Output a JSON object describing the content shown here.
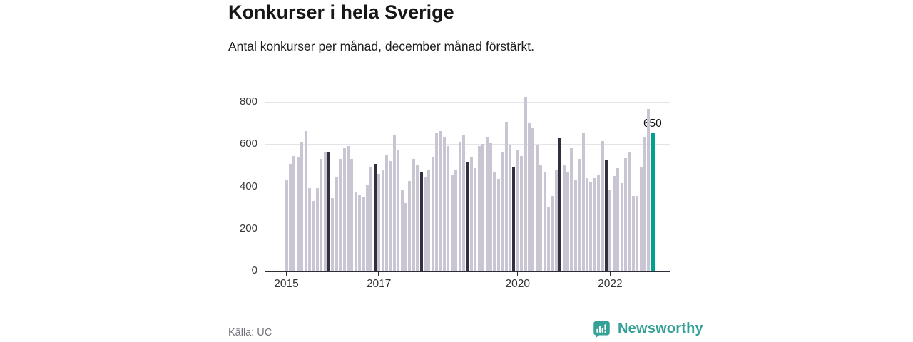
{
  "header": {
    "title": "Konkurser i hela Sverige",
    "subtitle": "Antal konkurser per månad, december månad förstärkt."
  },
  "footer": {
    "source": "Källa: UC",
    "brand": "Newsworthy"
  },
  "chart_data": {
    "type": "bar",
    "title": "Konkurser i hela Sverige",
    "subtitle": "Antal konkurser per månad, december månad förstärkt.",
    "xlabel": "",
    "ylabel": "Antal konkurser per månad",
    "ylim": [
      0,
      850
    ],
    "grid": true,
    "legend": false,
    "y_ticks": [
      0,
      200,
      400,
      600,
      800
    ],
    "x_ticks": [
      "2015",
      "2017",
      "2020",
      "2022"
    ],
    "years": [
      {
        "year": 2015,
        "values": [
          430,
          505,
          545,
          540,
          610,
          660,
          390,
          330,
          390,
          530,
          565,
          560
        ]
      },
      {
        "year": 2016,
        "values": [
          345,
          445,
          530,
          580,
          590,
          530,
          370,
          360,
          350,
          410,
          490,
          505
        ]
      },
      {
        "year": 2017,
        "values": [
          460,
          480,
          550,
          520,
          640,
          575,
          385,
          320,
          425,
          530,
          500,
          470
        ]
      },
      {
        "year": 2018,
        "values": [
          445,
          475,
          540,
          655,
          660,
          635,
          590,
          455,
          475,
          610,
          645,
          515
        ]
      },
      {
        "year": 2019,
        "values": [
          540,
          485,
          590,
          600,
          635,
          605,
          470,
          435,
          560,
          705,
          595,
          490
        ]
      },
      {
        "year": 2020,
        "values": [
          570,
          545,
          825,
          700,
          680,
          595,
          500,
          470,
          305,
          355,
          475,
          630
        ]
      },
      {
        "year": 2021,
        "values": [
          500,
          470,
          580,
          430,
          530,
          655,
          440,
          420,
          440,
          455,
          615,
          525
        ]
      },
      {
        "year": 2022,
        "values": [
          385,
          450,
          485,
          415,
          535,
          565,
          355,
          355,
          490,
          635,
          765,
          650
        ]
      }
    ],
    "december_emphasis": "dark",
    "highlight": {
      "year": 2022,
      "month": 12,
      "value": 650,
      "label": "650"
    },
    "colors": {
      "regular_bar": "#c9c5d3",
      "december_bar": "#322f3e",
      "highlight_bar": "#00a190",
      "gridline": "#e4e3e9",
      "axis": "#2d2d35",
      "brand_teal": "#35a096"
    }
  }
}
